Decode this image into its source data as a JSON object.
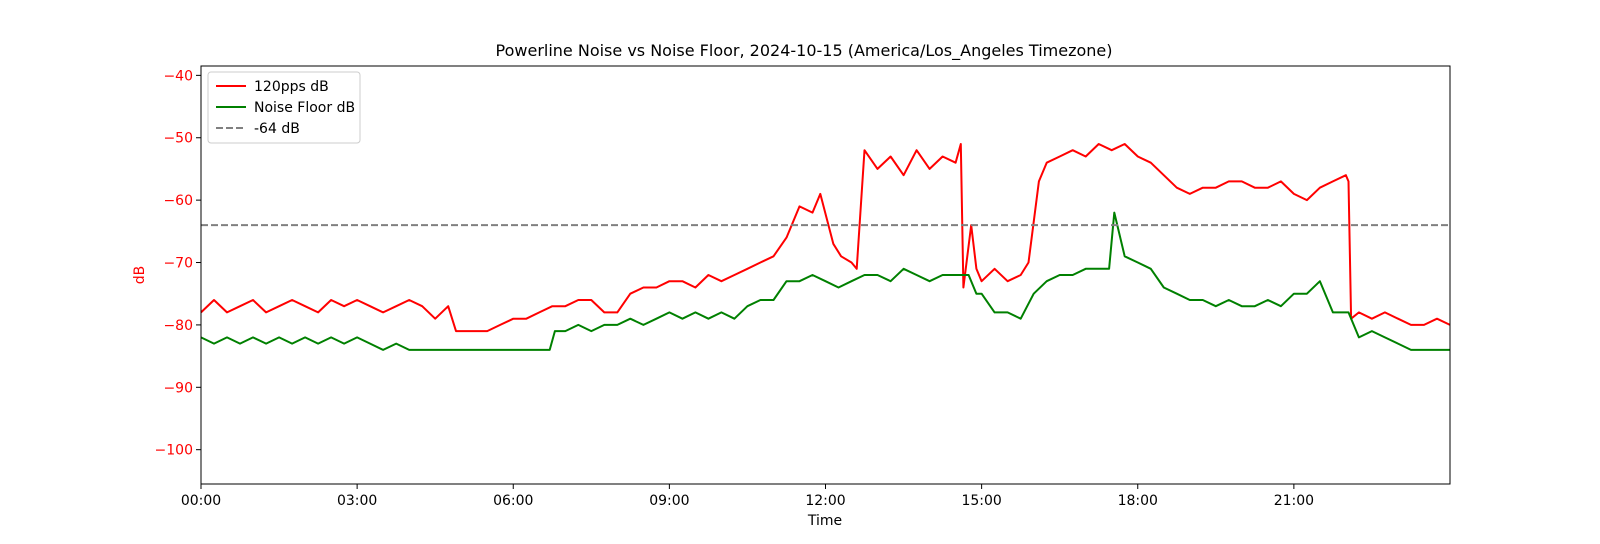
{
  "chart_data": {
    "type": "line",
    "title": "Powerline Noise vs Noise Floor, 2024-10-15 (America/Los_Angeles Timezone)",
    "xlabel": "Time",
    "ylabel": "dB",
    "xlim": [
      0,
      24
    ],
    "ylim": [
      -105.5,
      -38.5
    ],
    "x_ticks": [
      {
        "value": 0,
        "label": "00:00"
      },
      {
        "value": 3,
        "label": "03:00"
      },
      {
        "value": 6,
        "label": "06:00"
      },
      {
        "value": 9,
        "label": "09:00"
      },
      {
        "value": 12,
        "label": "12:00"
      },
      {
        "value": 15,
        "label": "15:00"
      },
      {
        "value": 18,
        "label": "18:00"
      },
      {
        "value": 21,
        "label": "21:00"
      }
    ],
    "y_ticks": [
      {
        "value": -40,
        "label": "−40"
      },
      {
        "value": -50,
        "label": "−50"
      },
      {
        "value": -60,
        "label": "−60"
      },
      {
        "value": -70,
        "label": "−70"
      },
      {
        "value": -80,
        "label": "−80"
      },
      {
        "value": -90,
        "label": "−90"
      },
      {
        "value": -100,
        "label": "−100"
      }
    ],
    "x_unit": "hours",
    "y_axis_color": "#ff0000",
    "grid": false,
    "legend_position": "top-left",
    "series": [
      {
        "name": "120pps dB",
        "color": "#ff0000",
        "style": "solid",
        "x": [
          0.0,
          0.25,
          0.5,
          0.75,
          1.0,
          1.25,
          1.5,
          1.75,
          2.0,
          2.25,
          2.5,
          2.75,
          3.0,
          3.25,
          3.5,
          3.75,
          4.0,
          4.25,
          4.5,
          4.75,
          4.9,
          5.25,
          5.5,
          5.75,
          6.0,
          6.25,
          6.5,
          6.75,
          7.0,
          7.25,
          7.5,
          7.75,
          8.0,
          8.25,
          8.5,
          8.75,
          9.0,
          9.25,
          9.5,
          9.75,
          10.0,
          10.25,
          10.5,
          10.75,
          11.0,
          11.25,
          11.5,
          11.75,
          11.9,
          12.15,
          12.3,
          12.5,
          12.6,
          12.75,
          13.0,
          13.25,
          13.5,
          13.75,
          14.0,
          14.25,
          14.5,
          14.6,
          14.65,
          14.8,
          14.9,
          15.0,
          15.25,
          15.5,
          15.75,
          15.9,
          16.1,
          16.25,
          16.5,
          16.75,
          17.0,
          17.25,
          17.5,
          17.75,
          18.0,
          18.25,
          18.5,
          18.75,
          19.0,
          19.25,
          19.5,
          19.75,
          20.0,
          20.25,
          20.5,
          20.75,
          21.0,
          21.25,
          21.5,
          21.75,
          22.0,
          22.05,
          22.1,
          22.25,
          22.5,
          22.75,
          23.0,
          23.25,
          23.5,
          23.75,
          24.0
        ],
        "y": [
          -78,
          -76,
          -78,
          -77,
          -76,
          -78,
          -77,
          -76,
          -77,
          -78,
          -76,
          -77,
          -76,
          -77,
          -78,
          -77,
          -76,
          -77,
          -79,
          -77,
          -81,
          -81,
          -81,
          -80,
          -79,
          -79,
          -78,
          -77,
          -77,
          -76,
          -76,
          -78,
          -78,
          -75,
          -74,
          -74,
          -73,
          -73,
          -74,
          -72,
          -73,
          -72,
          -71,
          -70,
          -69,
          -66,
          -61,
          -62,
          -59,
          -67,
          -69,
          -70,
          -71,
          -52,
          -55,
          -53,
          -56,
          -52,
          -55,
          -53,
          -54,
          -51,
          -74,
          -64,
          -71,
          -73,
          -71,
          -73,
          -72,
          -70,
          -57,
          -54,
          -53,
          -52,
          -53,
          -51,
          -52,
          -51,
          -53,
          -54,
          -56,
          -58,
          -59,
          -58,
          -58,
          -57,
          -57,
          -58,
          -58,
          -57,
          -59,
          -60,
          -58,
          -57,
          -56,
          -57,
          -79,
          -78,
          -79,
          -78,
          -79,
          -80,
          -80,
          -79,
          -80
        ]
      },
      {
        "name": "Noise Floor dB",
        "color": "#008000",
        "style": "solid",
        "x": [
          0.0,
          0.25,
          0.5,
          0.75,
          1.0,
          1.25,
          1.5,
          1.75,
          2.0,
          2.25,
          2.5,
          2.75,
          3.0,
          3.25,
          3.5,
          3.75,
          4.0,
          4.25,
          4.5,
          4.75,
          5.0,
          5.25,
          5.5,
          5.75,
          6.0,
          6.25,
          6.5,
          6.7,
          6.8,
          7.0,
          7.25,
          7.5,
          7.75,
          8.0,
          8.25,
          8.5,
          8.75,
          9.0,
          9.25,
          9.5,
          9.75,
          10.0,
          10.25,
          10.5,
          10.75,
          11.0,
          11.25,
          11.5,
          11.75,
          12.0,
          12.25,
          12.5,
          12.75,
          13.0,
          13.25,
          13.5,
          13.75,
          14.0,
          14.25,
          14.5,
          14.75,
          14.9,
          15.0,
          15.25,
          15.5,
          15.75,
          16.0,
          16.25,
          16.5,
          16.75,
          17.0,
          17.25,
          17.45,
          17.55,
          17.75,
          18.0,
          18.25,
          18.5,
          18.75,
          19.0,
          19.25,
          19.5,
          19.75,
          20.0,
          20.25,
          20.5,
          20.75,
          21.0,
          21.25,
          21.5,
          21.75,
          22.0,
          22.05,
          22.25,
          22.5,
          22.75,
          23.0,
          23.25,
          23.5,
          24.0
        ],
        "y": [
          -82,
          -83,
          -82,
          -83,
          -82,
          -83,
          -82,
          -83,
          -82,
          -83,
          -82,
          -83,
          -82,
          -83,
          -84,
          -83,
          -84,
          -84,
          -84,
          -84,
          -84,
          -84,
          -84,
          -84,
          -84,
          -84,
          -84,
          -84,
          -81,
          -81,
          -80,
          -81,
          -80,
          -80,
          -79,
          -80,
          -79,
          -78,
          -79,
          -78,
          -79,
          -78,
          -79,
          -77,
          -76,
          -76,
          -73,
          -73,
          -72,
          -73,
          -74,
          -73,
          -72,
          -72,
          -73,
          -71,
          -72,
          -73,
          -72,
          -72,
          -72,
          -75,
          -75,
          -78,
          -78,
          -79,
          -75,
          -73,
          -72,
          -72,
          -71,
          -71,
          -71,
          -62,
          -69,
          -70,
          -71,
          -74,
          -75,
          -76,
          -76,
          -77,
          -76,
          -77,
          -77,
          -76,
          -77,
          -75,
          -75,
          -73,
          -78,
          -78,
          -78,
          -82,
          -81,
          -82,
          -83,
          -84,
          -84,
          -84
        ]
      },
      {
        "name": "-64 dB",
        "color": "#808080",
        "style": "dashed",
        "x": [
          0,
          24
        ],
        "y": [
          -64,
          -64
        ]
      }
    ]
  }
}
